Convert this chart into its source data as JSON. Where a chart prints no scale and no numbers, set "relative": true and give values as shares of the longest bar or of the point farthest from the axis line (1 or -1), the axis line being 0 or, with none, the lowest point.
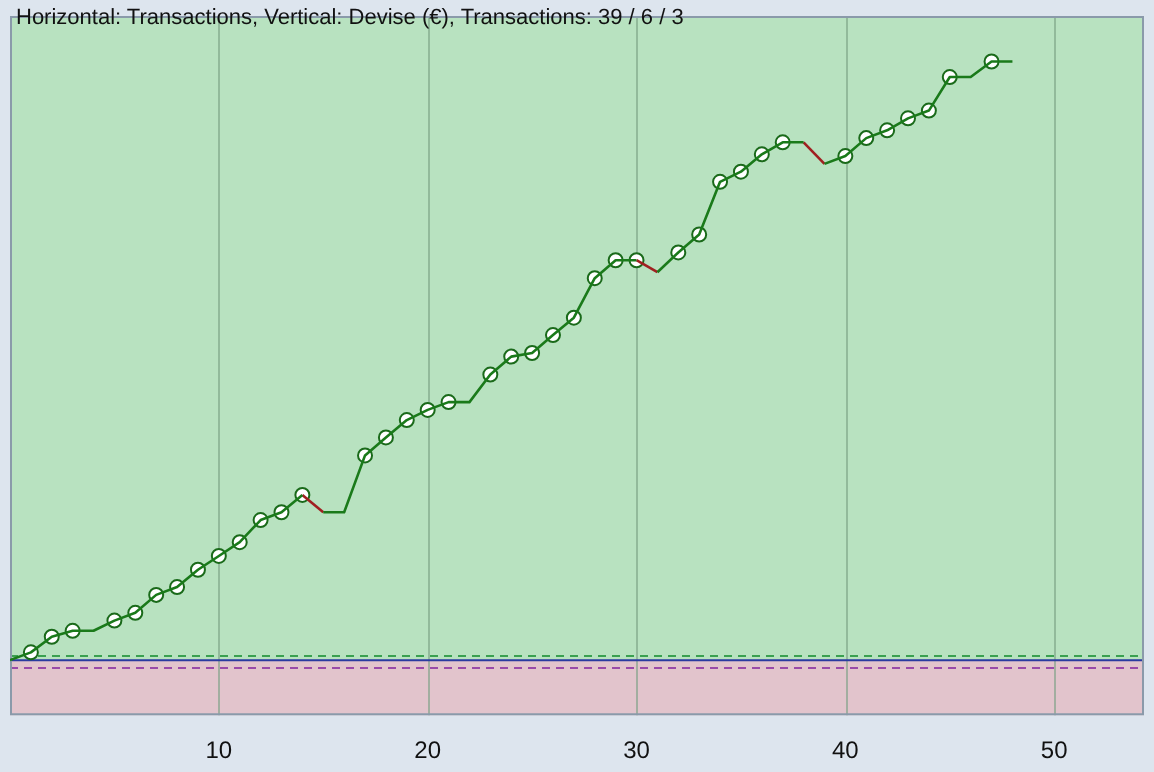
{
  "chart_data": {
    "type": "line",
    "title": "Horizontal: Transactions, Vertical: Devise (€), Transactions: 39 / 6 / 3",
    "relative": true,
    "x": [
      0,
      1,
      2,
      3,
      4,
      5,
      6,
      7,
      8,
      9,
      10,
      11,
      12,
      13,
      14,
      15,
      16,
      17,
      18,
      19,
      20,
      21,
      22,
      23,
      24,
      25,
      26,
      27,
      28,
      29,
      30,
      31,
      32,
      33,
      34,
      35,
      36,
      37,
      38,
      39,
      40,
      41,
      42,
      43,
      44,
      45,
      46,
      47,
      48
    ],
    "xlim": [
      0,
      54.3
    ],
    "xticks": [
      10,
      20,
      30,
      40,
      50
    ],
    "grid": "x",
    "legend": false,
    "series": [
      {
        "marker": "none",
        "color": "#1a7a1a",
        "values": [
          0,
          0.013,
          0.039,
          0.049,
          0.049,
          0.066,
          0.079,
          0.109,
          0.122,
          0.151,
          0.174,
          0.197,
          0.234,
          0.247,
          0.276,
          0.247,
          0.247,
          0.342,
          0.372,
          0.401,
          0.418,
          0.431,
          0.431,
          0.477,
          0.507,
          0.513,
          0.543,
          0.572,
          0.638,
          0.668,
          0.668,
          0.648,
          0.681,
          0.711,
          0.799,
          0.816,
          0.845,
          0.865,
          0.865,
          0.829,
          0.842,
          0.872,
          0.885,
          0.905,
          0.918,
          0.974,
          0.974,
          1,
          1
        ]
      },
      {
        "type": "line",
        "marker": "none",
        "color": "#a02020",
        "x": [
          14,
          15
        ],
        "values": [
          0.276,
          0.247
        ]
      },
      {
        "type": "line",
        "marker": "none",
        "color": "#a02020",
        "x": [
          30,
          31
        ],
        "values": [
          0.668,
          0.648
        ]
      },
      {
        "type": "line",
        "marker": "none",
        "color": "#a02020",
        "x": [
          38,
          39
        ],
        "values": [
          0.865,
          0.829
        ]
      },
      {
        "type": "scatter",
        "marker": "circle",
        "color": "#1a6a1a",
        "values": [
          null,
          0.013,
          0.039,
          0.049,
          null,
          0.066,
          0.079,
          0.109,
          0.122,
          0.151,
          0.174,
          0.197,
          0.234,
          0.247,
          0.276,
          null,
          null,
          0.342,
          0.372,
          0.401,
          0.418,
          0.431,
          null,
          0.477,
          0.507,
          0.513,
          0.543,
          0.572,
          0.638,
          0.668,
          0.668,
          null,
          0.681,
          0.711,
          0.799,
          0.816,
          0.845,
          0.865,
          null,
          null,
          0.842,
          0.872,
          0.885,
          0.905,
          0.918,
          0.974,
          null,
          1,
          null
        ]
      }
    ],
    "bands": [
      {
        "axis": "y",
        "from": 0,
        "to": 1.076,
        "color": "#b8e2c0"
      },
      {
        "axis": "y",
        "from": -0.092,
        "to": 0,
        "color": "#e2c4cc"
      }
    ],
    "ref_lines": [
      {
        "axis": "y",
        "value": 0.007,
        "color": "#3aa050",
        "line_style": "dashed"
      },
      {
        "axis": "y",
        "value": 0,
        "color": "#2a3aa0",
        "line_style": "solid"
      },
      {
        "axis": "y",
        "value": -0.013,
        "color": "#9a4aa8",
        "line_style": "dashed"
      }
    ]
  }
}
